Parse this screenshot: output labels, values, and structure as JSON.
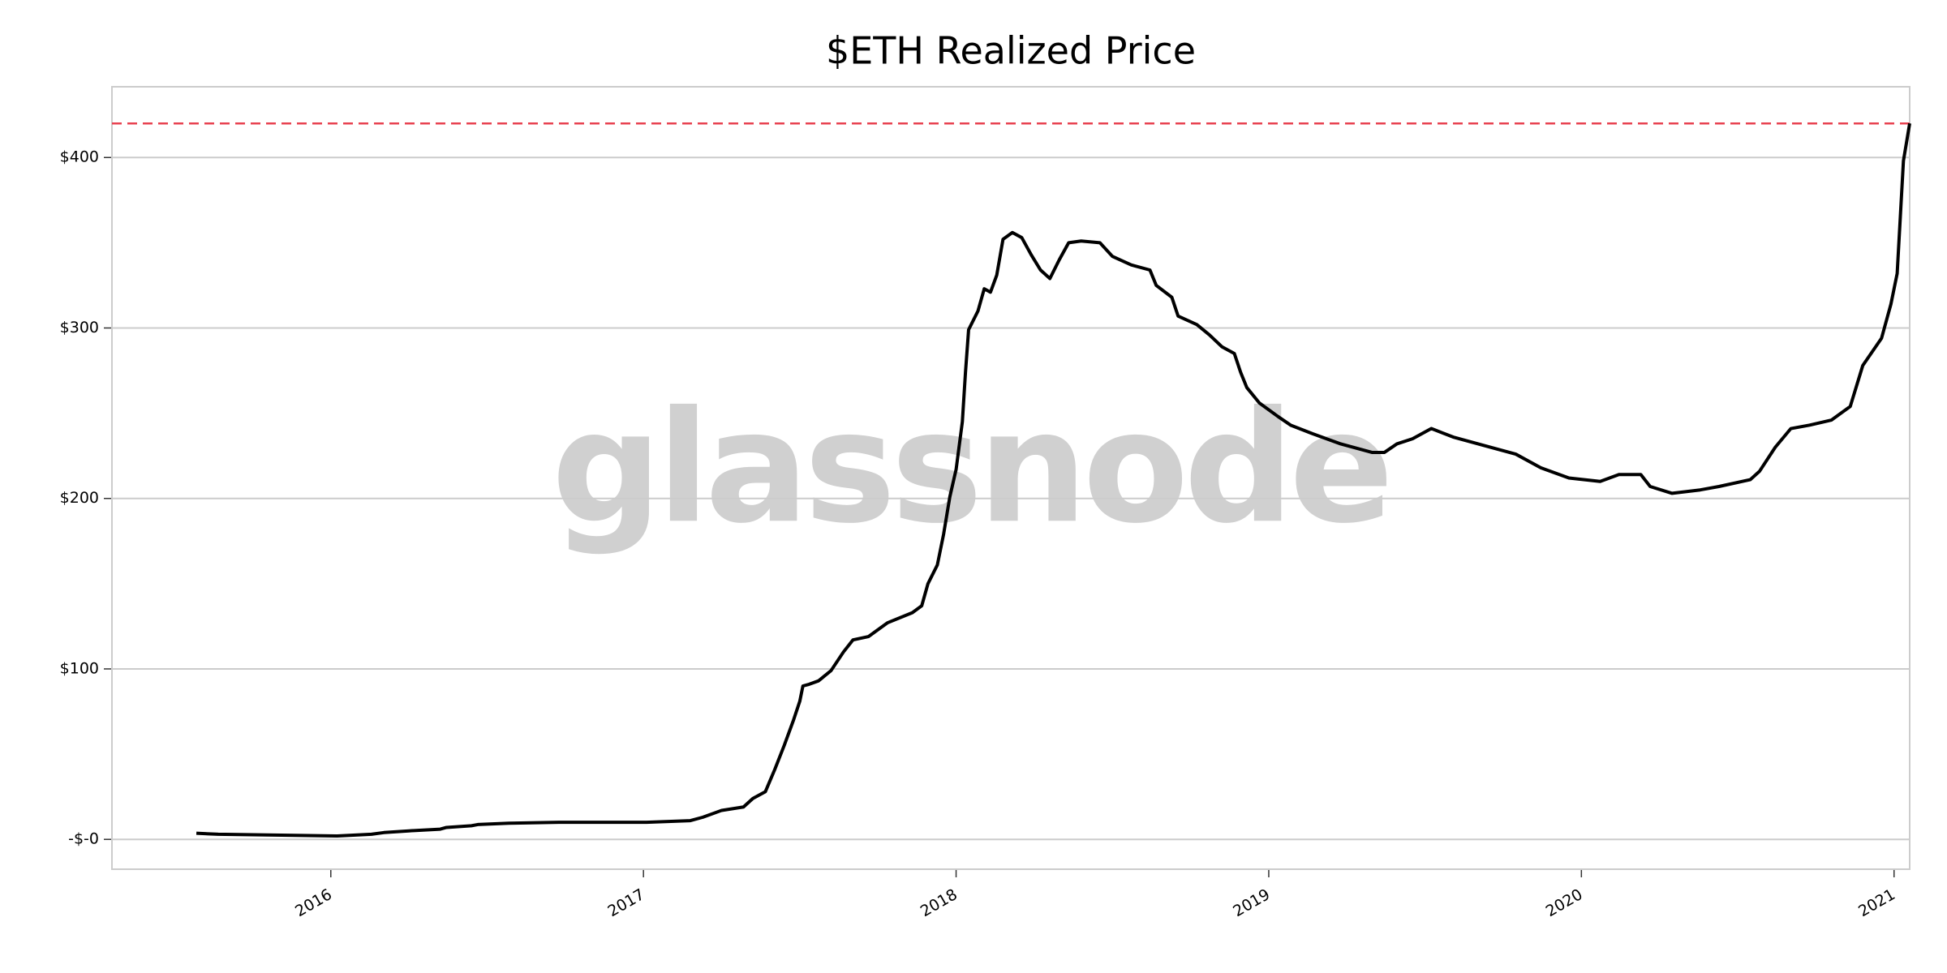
{
  "chart_data": {
    "type": "line",
    "title": "$ETH Realized Price",
    "watermark": "glassnode",
    "xlim": [
      2015.3,
      2021.05
    ],
    "xticks": [
      2016,
      2017,
      2018,
      2019,
      2020,
      2021
    ],
    "ylim": [
      -17.5,
      441.5
    ],
    "yticks": [
      {
        "value": 0,
        "label": "-$-0"
      },
      {
        "value": 100,
        "label": "$100"
      },
      {
        "value": 200,
        "label": "$200"
      },
      {
        "value": 300,
        "label": "$300"
      },
      {
        "value": 400,
        "label": "$400"
      }
    ],
    "grid": true,
    "reference_line": {
      "value": 420,
      "color": "#e8414f"
    },
    "series": [
      {
        "color": "#000000",
        "x": [
          2015.57,
          2015.64,
          2016.02,
          2016.13,
          2016.17,
          2016.25,
          2016.35,
          2016.37,
          2016.45,
          2016.47,
          2016.57,
          2016.73,
          2017.01,
          2017.15,
          2017.19,
          2017.25,
          2017.32,
          2017.35,
          2017.39,
          2017.42,
          2017.45,
          2017.48,
          2017.5,
          2017.51,
          2017.53,
          2017.56,
          2017.6,
          2017.64,
          2017.67,
          2017.72,
          2017.78,
          2017.86,
          2017.89,
          2017.91,
          2017.94,
          2017.96,
          2017.98,
          2018.0,
          2018.02,
          2018.03,
          2018.04,
          2018.07,
          2018.09,
          2018.11,
          2018.13,
          2018.15,
          2018.18,
          2018.21,
          2018.24,
          2018.27,
          2018.3,
          2018.33,
          2018.36,
          2018.4,
          2018.46,
          2018.5,
          2018.56,
          2018.62,
          2018.64,
          2018.69,
          2018.71,
          2018.77,
          2018.81,
          2018.85,
          2018.89,
          2018.91,
          2018.93,
          2018.97,
          2019.03,
          2019.07,
          2019.14,
          2019.23,
          2019.33,
          2019.37,
          2019.41,
          2019.46,
          2019.52,
          2019.59,
          2019.71,
          2019.79,
          2019.87,
          2019.96,
          2020.06,
          2020.12,
          2020.19,
          2020.22,
          2020.29,
          2020.38,
          2020.44,
          2020.54,
          2020.57,
          2020.62,
          2020.67,
          2020.73,
          2020.8,
          2020.86,
          2020.9,
          2020.96,
          2020.99,
          2021.01,
          2021.02,
          2021.03,
          2021.05
        ],
        "values": [
          3.6,
          3,
          2,
          3,
          4,
          5,
          6,
          7,
          8,
          8.7,
          9.5,
          10,
          10,
          11,
          13,
          17,
          19,
          24,
          28,
          41,
          55,
          70,
          81,
          90,
          91,
          93,
          99,
          110,
          117,
          119,
          127,
          133,
          137,
          150,
          161,
          179,
          201,
          217,
          245,
          274,
          299,
          310,
          323,
          321,
          331,
          352,
          356,
          353,
          343,
          334,
          329,
          340,
          350,
          351,
          350,
          342,
          337,
          334,
          325,
          318,
          307,
          302,
          296,
          289,
          285,
          274,
          265,
          256,
          248,
          243,
          238,
          232,
          227,
          227,
          232,
          235,
          241,
          236,
          230,
          226,
          218,
          212,
          210,
          214,
          214,
          207,
          203,
          205,
          207,
          211,
          216,
          230,
          241,
          243,
          246,
          254,
          278,
          294,
          314,
          332,
          365,
          398,
          420
        ]
      }
    ]
  }
}
